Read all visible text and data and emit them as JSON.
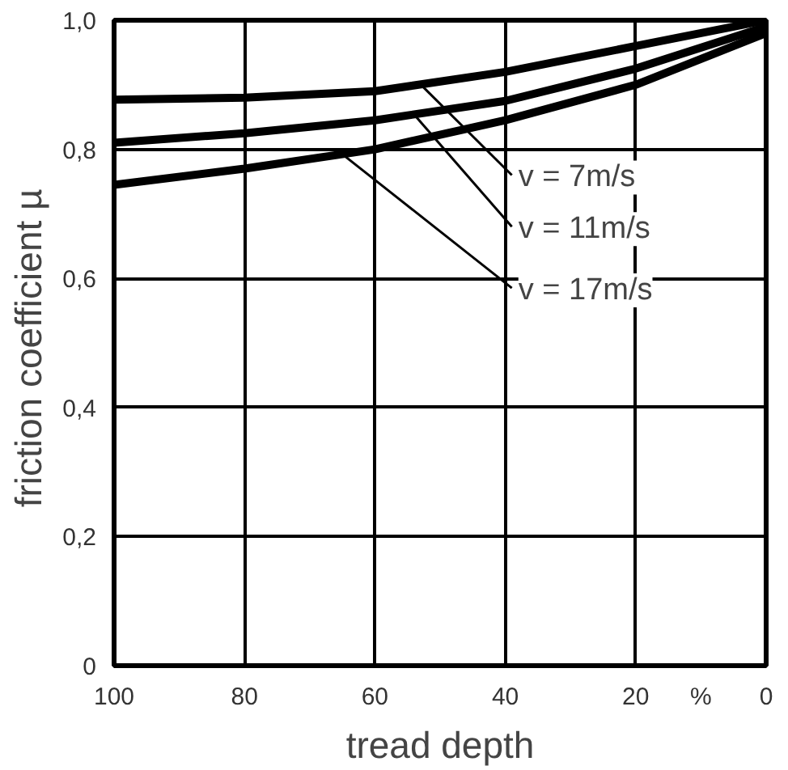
{
  "chart_data": {
    "type": "line",
    "xlabel": "tread depth",
    "ylabel": "friction coefficient  µ",
    "x": [
      100,
      80,
      60,
      40,
      20,
      0
    ],
    "series": [
      {
        "name": "v =  7m/s",
        "color": "#000000",
        "values": [
          0.877,
          0.88,
          0.89,
          0.92,
          0.96,
          1.0
        ]
      },
      {
        "name": "v = 11m/s",
        "color": "#000000",
        "values": [
          0.81,
          0.825,
          0.845,
          0.875,
          0.925,
          0.99
        ]
      },
      {
        "name": "v = 17m/s",
        "color": "#000000",
        "values": [
          0.745,
          0.77,
          0.8,
          0.845,
          0.9,
          0.98
        ]
      }
    ],
    "xlim": [
      100,
      0
    ],
    "ylim": [
      0,
      1.0
    ],
    "xticks": [
      100,
      80,
      60,
      40,
      20,
      0
    ],
    "yticks": [
      0,
      {
        "value": 0.2,
        "label": "0,2"
      },
      {
        "value": 0.4,
        "label": "0,4"
      },
      {
        "value": 0.6,
        "label": "0,6"
      },
      {
        "value": 0.8,
        "label": "0,8"
      },
      {
        "value": 1.0,
        "label": "1,0"
      }
    ],
    "annotations": [
      "%"
    ],
    "grid": true,
    "legend": false,
    "line_style": "solid",
    "marker": "none"
  }
}
